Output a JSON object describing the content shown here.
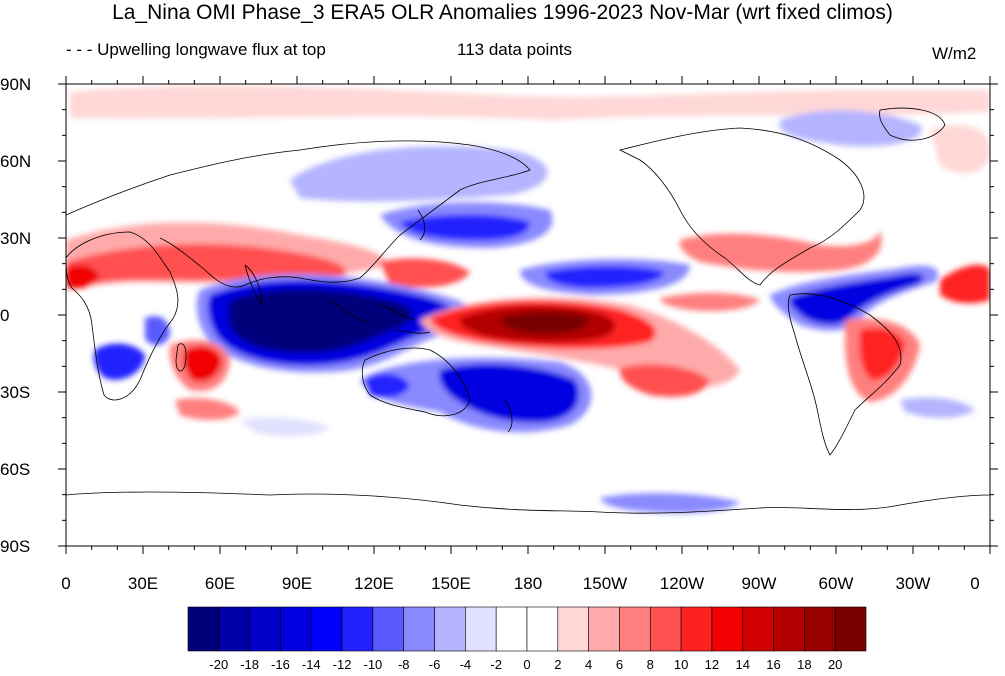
{
  "title": "La_Nina OMI Phase_3 ERA5 OLR Anomalies 1996-2023 Nov-Mar (wrt fixed climos)",
  "left_subtitle": "Upwelling longwave flux at top",
  "center_subtitle": "113 data points",
  "units": "W/m2",
  "lat_labels": [
    "90N",
    "60N",
    "30N",
    "0",
    "30S",
    "60S",
    "90S"
  ],
  "lon_labels": [
    "0",
    "30E",
    "60E",
    "90E",
    "120E",
    "150E",
    "180",
    "150W",
    "120W",
    "90W",
    "60W",
    "30W",
    "0"
  ],
  "colorbar": {
    "levels": [
      "-20",
      "-18",
      "-16",
      "-14",
      "-12",
      "-10",
      "-8",
      "-6",
      "-4",
      "-2",
      "0",
      "2",
      "4",
      "6",
      "8",
      "10",
      "12",
      "14",
      "16",
      "18",
      "20"
    ],
    "colors": [
      "#00007a",
      "#0000a8",
      "#0000c8",
      "#0000e0",
      "#0000ff",
      "#2222ff",
      "#5a5aff",
      "#8a8aff",
      "#b4b4ff",
      "#e0e0ff",
      "#ffffff",
      "#ffffff",
      "#ffd7d7",
      "#ffaaaa",
      "#ff7f7f",
      "#ff5050",
      "#ff2020",
      "#f00000",
      "#d20000",
      "#b40000",
      "#960000",
      "#780000"
    ]
  },
  "colors": {
    "negative_strong": "#0000c8",
    "negative_weak": "#b4b4ff",
    "positive_strong": "#d20000",
    "positive_weak": "#ffaaaa",
    "coastline": "#000000"
  }
}
